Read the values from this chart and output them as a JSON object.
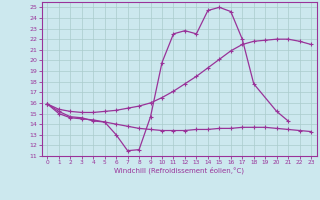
{
  "xlabel": "Windchill (Refroidissement éolien,°C)",
  "bg_color": "#cce8ee",
  "line_color": "#993399",
  "grid_color": "#aacccc",
  "ylim": [
    11,
    25.5
  ],
  "xlim": [
    -0.5,
    23.5
  ],
  "yticks": [
    11,
    12,
    13,
    14,
    15,
    16,
    17,
    18,
    19,
    20,
    21,
    22,
    23,
    24,
    25
  ],
  "xticks": [
    0,
    1,
    2,
    3,
    4,
    5,
    6,
    7,
    8,
    9,
    10,
    11,
    12,
    13,
    14,
    15,
    16,
    17,
    18,
    19,
    20,
    21,
    22,
    23
  ],
  "line1_x": [
    0,
    1,
    2,
    3,
    4,
    5,
    6,
    7,
    8,
    9,
    10,
    11,
    12,
    13,
    14,
    15,
    16,
    17,
    18,
    20,
    21
  ],
  "line1_y": [
    15.9,
    15.2,
    14.7,
    14.6,
    14.3,
    14.2,
    13.0,
    11.5,
    11.6,
    14.7,
    19.8,
    22.5,
    22.8,
    22.5,
    24.7,
    25.0,
    24.6,
    22.0,
    17.8,
    15.2,
    14.3
  ],
  "line2_x": [
    0,
    1,
    2,
    3,
    4,
    5,
    6,
    7,
    8,
    9,
    10,
    11,
    12,
    13,
    14,
    15,
    16,
    17,
    18,
    19,
    20,
    21,
    22,
    23
  ],
  "line2_y": [
    15.9,
    15.4,
    15.2,
    15.1,
    15.1,
    15.2,
    15.3,
    15.5,
    15.7,
    16.0,
    16.5,
    17.1,
    17.8,
    18.5,
    19.3,
    20.1,
    20.9,
    21.5,
    21.8,
    21.9,
    22.0,
    22.0,
    21.8,
    21.5
  ],
  "line3_x": [
    0,
    1,
    2,
    3,
    4,
    5,
    6,
    7,
    8,
    9,
    10,
    11,
    12,
    13,
    14,
    15,
    16,
    17,
    18,
    19,
    20,
    21,
    22,
    23
  ],
  "line3_y": [
    15.9,
    15.0,
    14.6,
    14.5,
    14.4,
    14.2,
    14.0,
    13.8,
    13.6,
    13.5,
    13.4,
    13.4,
    13.4,
    13.5,
    13.5,
    13.6,
    13.6,
    13.7,
    13.7,
    13.7,
    13.6,
    13.5,
    13.4,
    13.3
  ]
}
